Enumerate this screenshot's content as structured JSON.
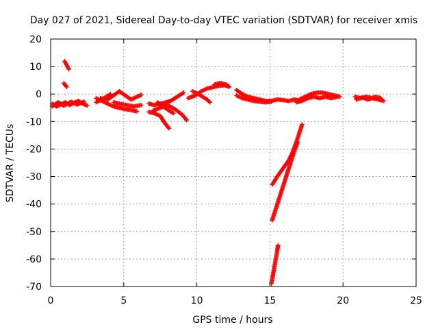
{
  "chart_data": {
    "type": "scatter",
    "title": "Day 027 of 2021, Sidereal Day-to-day VTEC variation (SDTVAR) for receiver xmis",
    "xlabel": "GPS time / hours",
    "ylabel": "SDTVAR / TECUs",
    "xlim": [
      0,
      25
    ],
    "ylim": [
      -70,
      20
    ],
    "xticks": [
      0,
      5,
      10,
      15,
      20,
      25
    ],
    "yticks": [
      -70,
      -60,
      -50,
      -40,
      -30,
      -20,
      -10,
      0,
      10,
      20
    ],
    "grid": true,
    "marker_color": "#ff0000",
    "series": [
      {
        "name": "SDTVAR",
        "segments": [
          [
            [
              0.1,
              -3.5
            ],
            [
              0.4,
              -4.5
            ],
            [
              0.7,
              -3.8
            ],
            [
              1.0,
              -3.0
            ],
            [
              1.3,
              -4.0
            ],
            [
              1.6,
              -3.2
            ],
            [
              1.9,
              -2.5
            ],
            [
              2.2,
              -3.5
            ],
            [
              2.5,
              -4.2
            ]
          ],
          [
            [
              0.1,
              -4.5
            ],
            [
              0.5,
              -3.0
            ],
            [
              0.9,
              -4.2
            ],
            [
              1.4,
              -2.8
            ],
            [
              1.8,
              -3.8
            ],
            [
              2.3,
              -2.8
            ]
          ],
          [
            [
              0.95,
              12.0
            ],
            [
              1.05,
              11.0
            ],
            [
              1.15,
              10.0
            ],
            [
              1.25,
              9.0
            ]
          ],
          [
            [
              0.9,
              4.0
            ],
            [
              1.0,
              3.2
            ],
            [
              1.1,
              2.6
            ]
          ],
          [
            [
              3.1,
              -1.5
            ],
            [
              3.5,
              -2.5
            ],
            [
              3.9,
              -3.5
            ],
            [
              4.3,
              -4.5
            ],
            [
              4.7,
              -5.0
            ],
            [
              5.1,
              -5.5
            ],
            [
              5.5,
              -5.8
            ],
            [
              5.9,
              -6.3
            ]
          ],
          [
            [
              3.1,
              -3.0
            ],
            [
              3.5,
              -2.0
            ],
            [
              3.8,
              -1.0
            ],
            [
              4.1,
              0.0
            ]
          ],
          [
            [
              3.4,
              -1.5
            ],
            [
              3.9,
              -2.0
            ],
            [
              4.3,
              -0.5
            ],
            [
              4.7,
              1.0
            ],
            [
              5.1,
              -0.5
            ],
            [
              5.5,
              -2.0
            ],
            [
              5.9,
              -1.0
            ],
            [
              6.2,
              -0.3
            ]
          ],
          [
            [
              4.3,
              -3.0
            ],
            [
              4.7,
              -3.5
            ],
            [
              5.2,
              -4.0
            ],
            [
              5.7,
              -4.5
            ],
            [
              6.2,
              -4.0
            ]
          ],
          [
            [
              6.7,
              -3.5
            ],
            [
              7.1,
              -4.0
            ],
            [
              7.5,
              -3.5
            ],
            [
              7.9,
              -3.0
            ],
            [
              8.2,
              -2.5
            ],
            [
              8.5,
              -1.5
            ],
            [
              8.8,
              -0.5
            ],
            [
              9.1,
              0.5
            ]
          ],
          [
            [
              6.7,
              -6.5
            ],
            [
              7.1,
              -7.0
            ],
            [
              7.5,
              -8.0
            ],
            [
              7.8,
              -10.5
            ],
            [
              8.1,
              -12.5
            ]
          ],
          [
            [
              7.0,
              -6.0
            ],
            [
              7.5,
              -5.0
            ],
            [
              8.0,
              -4.0
            ],
            [
              8.5,
              -5.5
            ],
            [
              9.0,
              -7.5
            ],
            [
              9.3,
              -9.5
            ]
          ],
          [
            [
              7.3,
              -3.0
            ],
            [
              7.7,
              -4.5
            ],
            [
              8.1,
              -6.0
            ],
            [
              8.4,
              -7.0
            ]
          ],
          [
            [
              9.4,
              -1.5
            ],
            [
              9.9,
              -0.5
            ],
            [
              10.3,
              1.0
            ],
            [
              10.7,
              2.0
            ],
            [
              11.1,
              2.5
            ],
            [
              11.5,
              3.0
            ],
            [
              11.9,
              3.2
            ],
            [
              12.2,
              2.8
            ]
          ],
          [
            [
              9.7,
              1.0
            ],
            [
              10.1,
              0.0
            ],
            [
              10.4,
              -1.0
            ],
            [
              10.7,
              -2.0
            ],
            [
              10.9,
              -3.0
            ]
          ],
          [
            [
              11.2,
              3.5
            ],
            [
              11.6,
              4.0
            ],
            [
              12.0,
              3.5
            ],
            [
              12.2,
              2.5
            ]
          ],
          [
            [
              12.7,
              1.5
            ],
            [
              13.1,
              0.0
            ],
            [
              13.5,
              -1.0
            ],
            [
              13.9,
              -1.5
            ],
            [
              14.3,
              -2.0
            ],
            [
              14.7,
              -2.5
            ],
            [
              15.1,
              -2.5
            ],
            [
              15.5,
              -2.0
            ],
            [
              15.9,
              -2.2
            ],
            [
              16.3,
              -2.5
            ],
            [
              16.7,
              -2.0
            ],
            [
              17.1,
              -2.5
            ]
          ],
          [
            [
              12.7,
              -0.5
            ],
            [
              13.1,
              -1.5
            ],
            [
              13.5,
              -2.0
            ],
            [
              13.9,
              -2.5
            ],
            [
              14.3,
              -2.8
            ],
            [
              14.7,
              -3.0
            ],
            [
              15.1,
              -2.8
            ]
          ],
          [
            [
              17.0,
              -2.0
            ],
            [
              17.4,
              -1.0
            ],
            [
              17.8,
              0.0
            ],
            [
              18.2,
              0.5
            ],
            [
              18.6,
              0.5
            ],
            [
              19.0,
              0.0
            ],
            [
              19.4,
              -0.5
            ],
            [
              19.8,
              -1.0
            ]
          ],
          [
            [
              16.8,
              -3.0
            ],
            [
              17.2,
              -2.5
            ],
            [
              17.6,
              -1.5
            ],
            [
              18.0,
              -1.0
            ],
            [
              18.4,
              -1.5
            ],
            [
              18.8,
              -1.0
            ],
            [
              19.2,
              -1.5
            ],
            [
              19.6,
              -1.0
            ]
          ],
          [
            [
              20.8,
              -1.0
            ],
            [
              21.2,
              -1.5
            ],
            [
              21.6,
              -1.0
            ],
            [
              22.0,
              -1.5
            ],
            [
              22.4,
              -2.0
            ],
            [
              22.8,
              -2.5
            ]
          ],
          [
            [
              20.9,
              -2.0
            ],
            [
              21.3,
              -1.2
            ],
            [
              21.7,
              -2.0
            ],
            [
              22.2,
              -1.0
            ],
            [
              22.6,
              -1.5
            ]
          ],
          [
            [
              15.15,
              -33.0
            ],
            [
              15.5,
              -30.0
            ],
            [
              15.9,
              -27.0
            ],
            [
              16.3,
              -24.0
            ],
            [
              16.6,
              -20.5
            ],
            [
              16.9,
              -16.0
            ],
            [
              17.2,
              -11.0
            ]
          ],
          [
            [
              15.15,
              -46.0
            ],
            [
              15.45,
              -41.0
            ],
            [
              15.75,
              -36.0
            ],
            [
              16.05,
              -31.0
            ],
            [
              16.35,
              -26.0
            ],
            [
              16.65,
              -21.0
            ],
            [
              16.9,
              -17.5
            ]
          ],
          [
            [
              15.1,
              -69.0
            ],
            [
              15.2,
              -66.0
            ],
            [
              15.3,
              -63.0
            ],
            [
              15.4,
              -60.0
            ],
            [
              15.5,
              -57.0
            ],
            [
              15.55,
              -55.0
            ]
          ]
        ]
      }
    ]
  }
}
